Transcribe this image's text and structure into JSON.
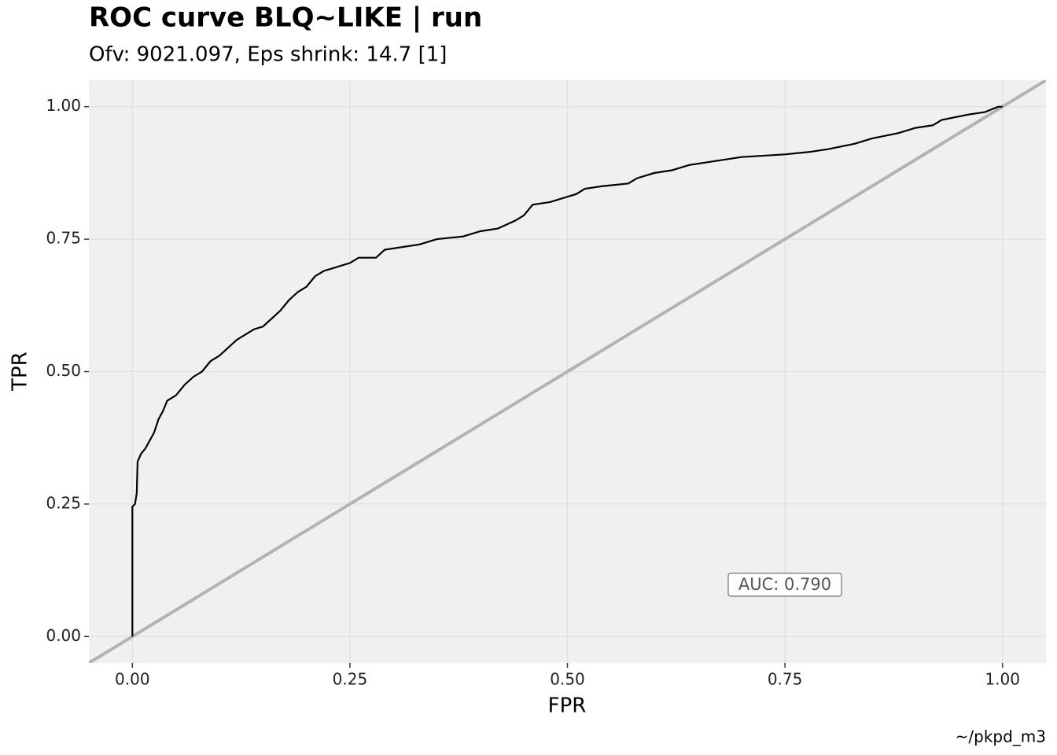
{
  "chart_data": {
    "type": "line",
    "title": "ROC curve BLQ~LIKE | run",
    "subtitle": "Ofv: 9021.097, Eps shrink: 14.7 [1]",
    "x_label": "FPR",
    "y_label": "TPR",
    "caption": "~/pkpd_m3",
    "annotation": "AUC: 0.790",
    "xlim": [
      -0.05,
      1.05
    ],
    "ylim": [
      -0.05,
      1.05
    ],
    "xticks": [
      {
        "value": 0,
        "label": "0.00"
      },
      {
        "value": 0.25,
        "label": "0.25"
      },
      {
        "value": 0.5,
        "label": "0.50"
      },
      {
        "value": 0.75,
        "label": "0.75"
      },
      {
        "value": 1,
        "label": "1.00"
      }
    ],
    "yticks": [
      {
        "value": 0,
        "label": "0.00"
      },
      {
        "value": 0.25,
        "label": "0.25"
      },
      {
        "value": 0.5,
        "label": "0.50"
      },
      {
        "value": 0.75,
        "label": "0.75"
      },
      {
        "value": 1,
        "label": "1.00"
      }
    ],
    "grid": true,
    "reference_color": "#b3b3b3",
    "x": [
      0,
      0,
      0.003,
      0.005,
      0.006,
      0.01,
      0.015,
      0.02,
      0.025,
      0.03,
      0.035,
      0.04,
      0.05,
      0.055,
      0.06,
      0.07,
      0.08,
      0.09,
      0.1,
      0.11,
      0.12,
      0.13,
      0.14,
      0.15,
      0.16,
      0.17,
      0.18,
      0.19,
      0.2,
      0.21,
      0.22,
      0.23,
      0.25,
      0.26,
      0.28,
      0.29,
      0.31,
      0.33,
      0.35,
      0.38,
      0.4,
      0.42,
      0.44,
      0.45,
      0.46,
      0.48,
      0.5,
      0.51,
      0.52,
      0.54,
      0.57,
      0.58,
      0.6,
      0.62,
      0.64,
      0.66,
      0.68,
      0.7,
      0.75,
      0.78,
      0.8,
      0.83,
      0.85,
      0.88,
      0.9,
      0.92,
      0.93,
      0.96,
      0.98,
      0.995,
      1.0
    ],
    "series": [
      {
        "name": "ROC",
        "color": "#000000",
        "values": [
          0,
          0.245,
          0.25,
          0.27,
          0.33,
          0.345,
          0.355,
          0.37,
          0.385,
          0.41,
          0.425,
          0.445,
          0.455,
          0.465,
          0.475,
          0.49,
          0.5,
          0.52,
          0.53,
          0.545,
          0.56,
          0.57,
          0.58,
          0.585,
          0.6,
          0.615,
          0.635,
          0.65,
          0.66,
          0.68,
          0.69,
          0.695,
          0.705,
          0.715,
          0.715,
          0.73,
          0.735,
          0.74,
          0.75,
          0.755,
          0.765,
          0.77,
          0.785,
          0.795,
          0.815,
          0.82,
          0.83,
          0.835,
          0.845,
          0.85,
          0.855,
          0.865,
          0.875,
          0.88,
          0.89,
          0.895,
          0.9,
          0.905,
          0.91,
          0.915,
          0.92,
          0.93,
          0.94,
          0.95,
          0.96,
          0.965,
          0.975,
          0.985,
          0.99,
          1.0,
          1.0
        ]
      }
    ]
  }
}
